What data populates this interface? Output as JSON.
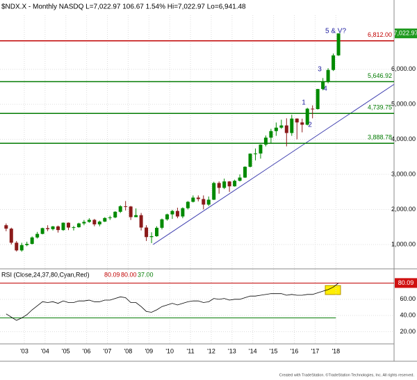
{
  "header": "$NDX.X - Monthly  NASDQ  L=7,022.97  106.67  1.54%  Hi=7,022.97  Lo=6,941.48",
  "footer": "Created with TradeStation. ©TradeStation Technologies, Inc. All rights reserved.",
  "chart_data": [
    {
      "type": "candlestick",
      "color_up": "#008a00",
      "color_down": "#8b1a1a",
      "grid": true,
      "x": [
        2002.0,
        2002.25,
        2002.5,
        2002.75,
        2003.0,
        2003.25,
        2003.5,
        2003.75,
        2004.0,
        2004.25,
        2004.5,
        2004.75,
        2005.0,
        2005.25,
        2005.5,
        2005.75,
        2006.0,
        2006.25,
        2006.5,
        2006.75,
        2007.0,
        2007.25,
        2007.5,
        2007.75,
        2008.0,
        2008.25,
        2008.5,
        2008.75,
        2009.0,
        2009.25,
        2009.5,
        2009.75,
        2010.0,
        2010.25,
        2010.5,
        2010.75,
        2011.0,
        2011.25,
        2011.5,
        2011.75,
        2012.0,
        2012.25,
        2012.5,
        2012.75,
        2013.0,
        2013.25,
        2013.5,
        2013.75,
        2014.0,
        2014.25,
        2014.5,
        2014.75,
        2015.0,
        2015.25,
        2015.5,
        2015.75,
        2016.0,
        2016.25,
        2016.5,
        2016.75,
        2017.0,
        2017.25,
        2017.5,
        2017.75,
        2018.0
      ],
      "open": [
        1550,
        1452,
        1051,
        832,
        984,
        1018,
        1201,
        1303,
        1467,
        1438,
        1516,
        1412,
        1621,
        1483,
        1493,
        1601,
        1645,
        1703,
        1575,
        1654,
        1756,
        1772,
        1934,
        2091,
        2084,
        1781,
        1837,
        1484,
        1212,
        1237,
        1477,
        1718,
        1860,
        1957,
        1800,
        2036,
        2218,
        2338,
        2297,
        2139,
        2278,
        2755,
        2616,
        2799,
        2660,
        2818,
        2910,
        3218,
        3592,
        3596,
        3850,
        4049,
        4236,
        4334,
        4397,
        4181,
        4593,
        4483,
        4418,
        4875,
        4864,
        5436,
        5647,
        5980,
        6396
      ],
      "high": [
        1600,
        1480,
        1100,
        1050,
        1080,
        1230,
        1360,
        1480,
        1550,
        1530,
        1540,
        1630,
        1630,
        1530,
        1620,
        1700,
        1750,
        1730,
        1680,
        1780,
        1820,
        1950,
        2120,
        2240,
        2100,
        2030,
        1900,
        1550,
        1350,
        1520,
        1740,
        1880,
        1990,
        2050,
        2060,
        2240,
        2400,
        2400,
        2400,
        2370,
        2790,
        2800,
        2880,
        2810,
        2850,
        3000,
        3230,
        3600,
        3740,
        3860,
        4110,
        4300,
        4480,
        4560,
        4600,
        4700,
        4600,
        4590,
        4900,
        4970,
        5440,
        5750,
        6030,
        6450,
        7023
      ],
      "low": [
        1380,
        1000,
        800,
        795,
        950,
        1000,
        1170,
        1290,
        1380,
        1400,
        1340,
        1390,
        1410,
        1400,
        1480,
        1550,
        1620,
        1520,
        1520,
        1640,
        1700,
        1750,
        1900,
        1970,
        1700,
        1780,
        1400,
        1100,
        1040,
        1220,
        1430,
        1680,
        1730,
        1750,
        1750,
        2000,
        2200,
        2230,
        2000,
        2100,
        2270,
        2450,
        2580,
        2500,
        2650,
        2800,
        2900,
        3200,
        3400,
        3450,
        3800,
        3900,
        4100,
        4300,
        3800,
        4100,
        4000,
        4200,
        4400,
        4600,
        4850,
        5400,
        5600,
        5950,
        6380
      ],
      "close": [
        1452,
        1051,
        832,
        984,
        1018,
        1201,
        1303,
        1467,
        1438,
        1516,
        1412,
        1621,
        1483,
        1493,
        1601,
        1645,
        1703,
        1575,
        1654,
        1756,
        1772,
        1934,
        2091,
        2084,
        1781,
        1837,
        1484,
        1212,
        1237,
        1477,
        1718,
        1860,
        1957,
        1800,
        2036,
        2218,
        2338,
        2297,
        2139,
        2278,
        2755,
        2616,
        2799,
        2660,
        2818,
        2910,
        3218,
        3592,
        3596,
        3850,
        4049,
        4236,
        4334,
        4397,
        4181,
        4593,
        4483,
        4418,
        4875,
        4864,
        5436,
        5647,
        5980,
        6396,
        7023
      ],
      "xlim": [
        2001.83,
        2020.8
      ],
      "xticks": [
        {
          "value": 2003,
          "label": "'03"
        },
        {
          "value": 2004,
          "label": "'04"
        },
        {
          "value": 2005,
          "label": "'05"
        },
        {
          "value": 2006,
          "label": "'06"
        },
        {
          "value": 2007,
          "label": "'07"
        },
        {
          "value": 2008,
          "label": "'08"
        },
        {
          "value": 2009,
          "label": "'09"
        },
        {
          "value": 2010,
          "label": "'10"
        },
        {
          "value": 2011,
          "label": "'11"
        },
        {
          "value": 2012,
          "label": "'12"
        },
        {
          "value": 2013,
          "label": "'13"
        },
        {
          "value": 2014,
          "label": "'14"
        },
        {
          "value": 2015,
          "label": "'15"
        },
        {
          "value": 2016,
          "label": "'16"
        },
        {
          "value": 2017,
          "label": "'17"
        },
        {
          "value": 2018,
          "label": "'18"
        }
      ],
      "ylim": [
        345,
        7540
      ],
      "yticks": [
        {
          "value": 1000,
          "label": "1,000.00"
        },
        {
          "value": 2000,
          "label": "2,000.00"
        },
        {
          "value": 3000,
          "label": "3,000.00"
        },
        {
          "value": 4000,
          "label": "4,000.00"
        },
        {
          "value": 5000,
          "label": "5,000.00"
        },
        {
          "value": 6000,
          "label": "6,000.00"
        }
      ],
      "levels": [
        {
          "value": 6812,
          "label": "6,812.00",
          "color": "#c00000"
        },
        {
          "value": 5646.92,
          "label": "5,646.92",
          "color": "#007a00"
        },
        {
          "value": 4739.75,
          "label": "4,739.75",
          "color": "#007a00"
        },
        {
          "value": 3888.78,
          "label": "3,888.78",
          "color": "#007a00"
        }
      ],
      "last_price": {
        "value": 7022.97,
        "label": "7,022.97"
      },
      "trendline": {
        "x": [
          2009.2,
          2020.8
        ],
        "y": [
          1000,
          5570
        ],
        "color": "#4040b0"
      },
      "annotations": [
        "5 & V?",
        "1",
        "2",
        "3",
        "4"
      ]
    },
    {
      "type": "line",
      "title": "RSI (Close,24,37,80,Cyan,Red)",
      "color": "#000000",
      "values": [
        42,
        38,
        34,
        37,
        41,
        47,
        52,
        57,
        56,
        57,
        55,
        58,
        56,
        56,
        58,
        58,
        59,
        57,
        57,
        59,
        59,
        61,
        63,
        62,
        56,
        56,
        51,
        45,
        44,
        47,
        51,
        53,
        55,
        53,
        55,
        57,
        58,
        58,
        56,
        57,
        61,
        60,
        61,
        59,
        60,
        60,
        62,
        64,
        64,
        65,
        66,
        67,
        67,
        67,
        65,
        66,
        65,
        65,
        66,
        66,
        68,
        70,
        72,
        75,
        80.09
      ],
      "ylim": [
        5,
        95
      ],
      "yticks": [
        {
          "value": 20,
          "label": "20.00"
        },
        {
          "value": 40,
          "label": "40.00"
        },
        {
          "value": 60,
          "label": "60.00"
        }
      ],
      "levels": [
        {
          "value": 80,
          "label": "80.00",
          "color": "#c00000"
        },
        {
          "value": 37,
          "label": "37.00",
          "color": "#007a00"
        }
      ],
      "last": {
        "value": 80.09,
        "label": "80.09"
      }
    }
  ]
}
